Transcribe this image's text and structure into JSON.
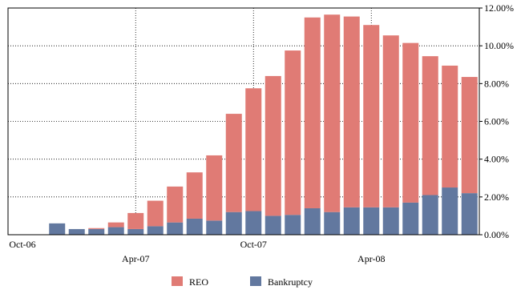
{
  "chart_data": {
    "type": "bar",
    "stacked": true,
    "categories": [
      "Oct-06",
      "Nov-06",
      "Dec-06",
      "Jan-07",
      "Feb-07",
      "Mar-07",
      "Apr-07",
      "May-07",
      "Jun-07",
      "Jul-07",
      "Aug-07",
      "Sep-07",
      "Oct-07",
      "Nov-07",
      "Dec-07",
      "Jan-08",
      "Feb-08",
      "Mar-08",
      "Apr-08",
      "May-08",
      "Jun-08",
      "Jul-08",
      "Aug-08",
      "Sep-08"
    ],
    "x_tick_labels": [
      {
        "index": 0,
        "label": "Oct-06",
        "row": 1
      },
      {
        "index": 6,
        "label": "Apr-07",
        "row": 2
      },
      {
        "index": 12,
        "label": "Oct-07",
        "row": 1
      },
      {
        "index": 18,
        "label": "Apr-08",
        "row": 2
      }
    ],
    "series": [
      {
        "name": "Bankruptcy",
        "color": "#62789f",
        "values": [
          0.0,
          0.0,
          0.6,
          0.3,
          0.3,
          0.4,
          0.3,
          0.45,
          0.65,
          0.85,
          0.75,
          1.2,
          1.25,
          1.0,
          1.05,
          1.4,
          1.2,
          1.45,
          1.45,
          1.45,
          1.7,
          2.1,
          2.5,
          2.2
        ]
      },
      {
        "name": "REO",
        "color": "#e07b75",
        "values": [
          0.0,
          0.0,
          0.0,
          0.0,
          0.05,
          0.25,
          0.85,
          1.35,
          1.9,
          2.45,
          3.45,
          5.2,
          6.5,
          7.4,
          8.7,
          10.1,
          10.45,
          10.1,
          9.65,
          9.1,
          8.45,
          7.35,
          6.45,
          6.15
        ]
      }
    ],
    "yticks": [
      "0.00%",
      "2.00%",
      "4.00%",
      "6.00%",
      "8.00%",
      "10.00%",
      "12.00%"
    ],
    "ylim": [
      0,
      12
    ],
    "y_axis_side": "right",
    "legend": {
      "placement": "bottom",
      "items": [
        "REO",
        "Bankruptcy"
      ]
    },
    "grid": true,
    "title": "",
    "xlabel": "",
    "ylabel": ""
  }
}
